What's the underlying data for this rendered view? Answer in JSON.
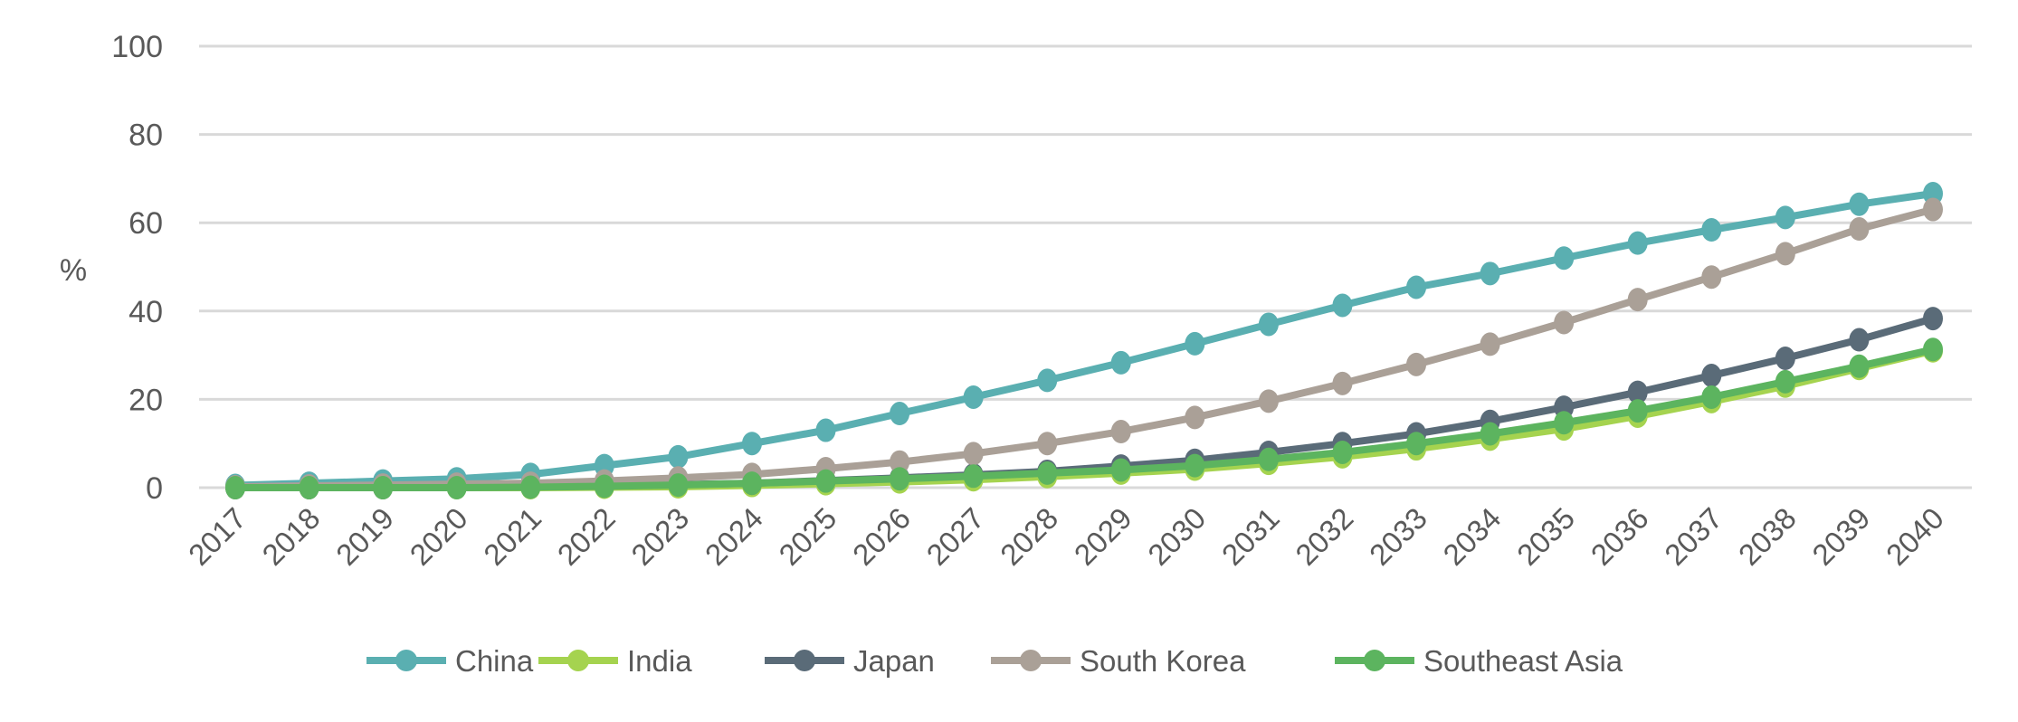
{
  "chart_data": {
    "type": "line",
    "title": "",
    "xlabel": "",
    "ylabel": "%",
    "ylim": [
      0,
      100
    ],
    "yticks": [
      0,
      20,
      40,
      60,
      80,
      100
    ],
    "grid": true,
    "legend_position": "bottom",
    "x": [
      "2017",
      "2018",
      "2019",
      "2020",
      "2021",
      "2022",
      "2023",
      "2024",
      "2025",
      "2026",
      "2027",
      "2028",
      "2029",
      "2030",
      "2031",
      "2032",
      "2033",
      "2034",
      "2035",
      "2036",
      "2037",
      "2038",
      "2039",
      "2040"
    ],
    "series": [
      {
        "name": "China",
        "color": "#5aafb1",
        "values": [
          0.5,
          1,
          1.5,
          2,
          3,
          5,
          7,
          10,
          13,
          16.8,
          20.5,
          24.3,
          28.3,
          32.6,
          37,
          41.3,
          45.4,
          48.5,
          52,
          55.4,
          58.4,
          61.2,
          64.2,
          66.6
        ]
      },
      {
        "name": "India",
        "color": "#a5d34f",
        "values": [
          0,
          0,
          0,
          0,
          0,
          0.1,
          0.2,
          0.5,
          0.9,
          1.3,
          1.8,
          2.5,
          3.3,
          4.2,
          5.5,
          7,
          8.8,
          11,
          13.3,
          16.2,
          19.5,
          23,
          27,
          31
        ]
      },
      {
        "name": "Japan",
        "color": "#5a6b78",
        "values": [
          0,
          0,
          0,
          0.1,
          0.2,
          0.4,
          0.7,
          1,
          1.6,
          2.2,
          2.9,
          3.7,
          4.9,
          6.2,
          8,
          10,
          12.2,
          15,
          18.2,
          21.6,
          25.4,
          29.3,
          33.5,
          38.3
        ]
      },
      {
        "name": "South Korea",
        "color": "#aaa097",
        "values": [
          0.2,
          0.4,
          0.6,
          0.8,
          1,
          1.5,
          2.2,
          3,
          4.3,
          5.8,
          7.7,
          10,
          12.7,
          15.9,
          19.6,
          23.6,
          27.9,
          32.5,
          37.4,
          42.6,
          47.7,
          53,
          58.6,
          63
        ]
      },
      {
        "name": "Southeast Asia",
        "color": "#5cb45f",
        "values": [
          0,
          0,
          0,
          0,
          0.1,
          0.3,
          0.6,
          1,
          1.5,
          2,
          2.6,
          3.3,
          4,
          5,
          6.4,
          8,
          10,
          12.2,
          14.7,
          17.4,
          20.5,
          24,
          27.5,
          31.3
        ]
      }
    ]
  }
}
